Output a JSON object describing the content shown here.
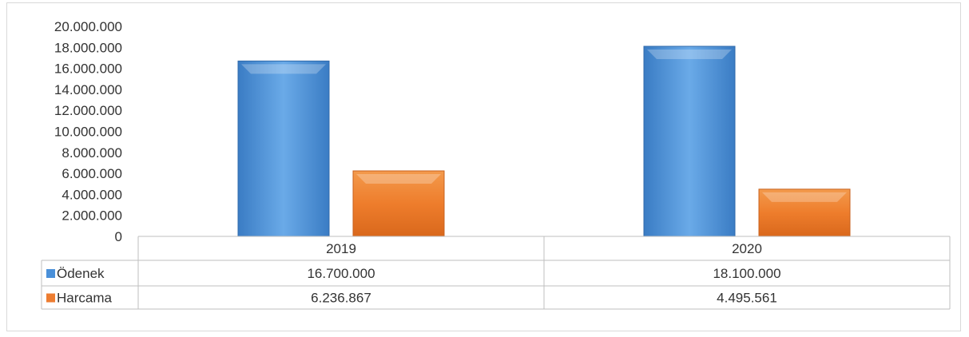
{
  "chart_data": {
    "type": "bar",
    "categories": [
      "2019",
      "2020"
    ],
    "series": [
      {
        "name": "Ödenek",
        "values": [
          16700000,
          18100000
        ],
        "value_labels": [
          "16.700.000",
          "18.100.000"
        ],
        "color": "#4a90d9"
      },
      {
        "name": "Harcama",
        "values": [
          6236867,
          4495561
        ],
        "value_labels": [
          "6.236.867",
          "4.495.561"
        ],
        "color": "#ed7d31"
      }
    ],
    "ylim": [
      0,
      20000000
    ],
    "yticks": [
      0,
      2000000,
      4000000,
      6000000,
      8000000,
      10000000,
      12000000,
      14000000,
      16000000,
      18000000,
      20000000
    ],
    "ytick_labels": [
      "0",
      "2.000.000",
      "4.000.000",
      "6.000.000",
      "8.000.000",
      "10.000.000",
      "12.000.000",
      "14.000.000",
      "16.000.000",
      "18.000.000",
      "20.000.000"
    ],
    "title": "",
    "xlabel": "",
    "ylabel": "",
    "grid": false,
    "legend": "data-table"
  }
}
